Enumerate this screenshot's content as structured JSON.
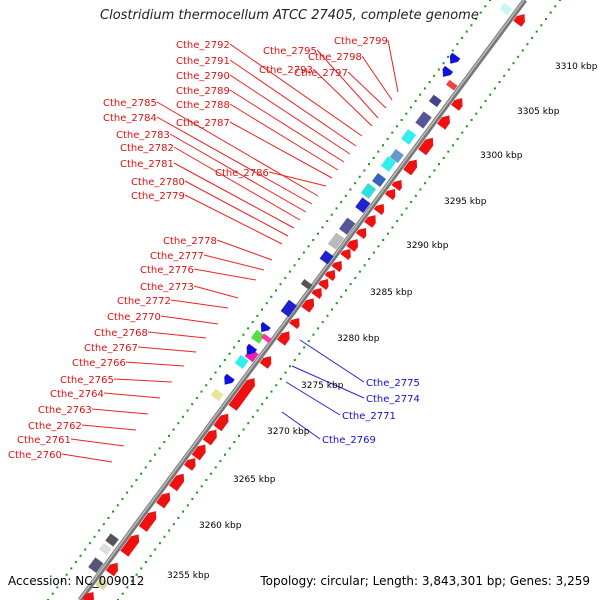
{
  "title": "Clostridium thermocellum ATCC 27405, complete genome",
  "accession_text": "Accession: NC_009012",
  "topology_text": "Topology: circular; Length: 3,843,301 bp; Genes: 3,259",
  "colors": {
    "forward_label": "#dd1111",
    "reverse_label": "#1111cc",
    "leader_forward": "#ee2222",
    "leader_reverse": "#2222dd",
    "backbone": "#888888",
    "tick_dots": "#119911"
  },
  "tick_labels": [
    "3255 kbp",
    "3260 kbp",
    "3265 kbp",
    "3270 kbp",
    "3275 kbp",
    "3280 kbp",
    "3285 kbp",
    "3290 kbp",
    "3295 kbp",
    "3300 kbp",
    "3305 kbp",
    "3310 kbp"
  ],
  "forward_labels": [
    "Cthe_2799",
    "Cthe_2798",
    "Cthe_2797",
    "Cthe_2795",
    "Cthe_2793",
    "Cthe_2792",
    "Cthe_2791",
    "Cthe_2790",
    "Cthe_2789",
    "Cthe_2788",
    "Cthe_2787",
    "Cthe_2786",
    "Cthe_2785",
    "Cthe_2784",
    "Cthe_2783",
    "Cthe_2782",
    "Cthe_2781",
    "Cthe_2780",
    "Cthe_2779",
    "Cthe_2778",
    "Cthe_2777",
    "Cthe_2776",
    "Cthe_2773",
    "Cthe_2772",
    "Cthe_2770",
    "Cthe_2768",
    "Cthe_2767",
    "Cthe_2766",
    "Cthe_2765",
    "Cthe_2764",
    "Cthe_2763",
    "Cthe_2762",
    "Cthe_2761",
    "Cthe_2760"
  ],
  "reverse_labels": [
    "Cthe_2775",
    "Cthe_2774",
    "Cthe_2771",
    "Cthe_2769"
  ]
}
